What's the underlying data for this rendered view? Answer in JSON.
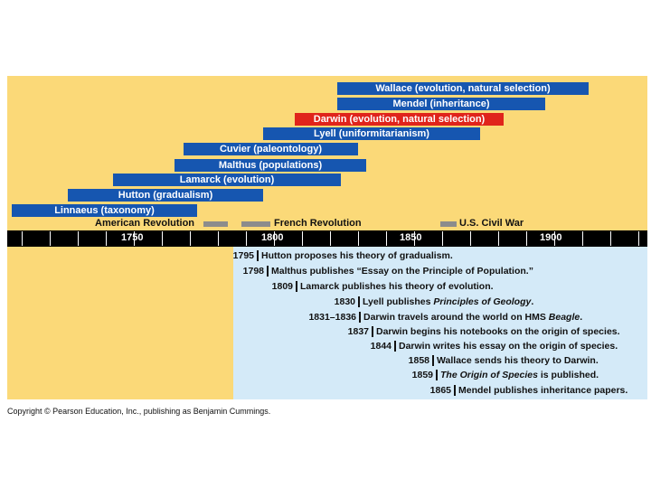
{
  "scientists": [
    {
      "label": "Wallace (evolution, natural selection)",
      "highlight": false
    },
    {
      "label": "Mendel (inheritance)",
      "highlight": false
    },
    {
      "label": "Darwin (evolution, natural selection)",
      "highlight": true
    },
    {
      "label": "Lyell (uniformitarianism)",
      "highlight": false
    },
    {
      "label": "Cuvier (paleontology)",
      "highlight": false
    },
    {
      "label": "Malthus (populations)",
      "highlight": false
    },
    {
      "label": "Lamarck (evolution)",
      "highlight": false
    },
    {
      "label": "Hutton (gradualism)",
      "highlight": false
    },
    {
      "label": "Linnaeus (taxonomy)",
      "highlight": false
    }
  ],
  "historic_events": [
    {
      "label": "American Revolution"
    },
    {
      "label": "French Revolution"
    },
    {
      "label": "U.S. Civil War"
    }
  ],
  "axis_years": [
    "1750",
    "1800",
    "1850",
    "1900"
  ],
  "events": [
    {
      "year": "1795",
      "text": "Hutton proposes his theory of gradualism."
    },
    {
      "year": "1798",
      "text": "Malthus publishes “Essay on the Principle of Population.”"
    },
    {
      "year": "1809",
      "text": "Lamarck publishes his theory of evolution."
    },
    {
      "year": "1830",
      "text_before": "Lyell publishes ",
      "italic": "Principles of Geology",
      "text_after": "."
    },
    {
      "year": "1831–1836",
      "text_before": "Darwin travels around the world on HMS ",
      "italic": "Beagle",
      "text_after": "."
    },
    {
      "year": "1837",
      "text": "Darwin begins his notebooks on the origin of species."
    },
    {
      "year": "1844",
      "text": "Darwin writes his essay on the origin of species."
    },
    {
      "year": "1858",
      "text": "Wallace sends his theory to Darwin."
    },
    {
      "year": "1859",
      "text_before": "",
      "italic": "The Origin of Species",
      "text_after": " is published."
    },
    {
      "year": "1865",
      "text": "Mendel publishes inheritance papers."
    }
  ],
  "copyright": "Copyright © Pearson Education, Inc., publishing as Benjamin Cummings.",
  "colors": {
    "background": "#fbd978",
    "bar": "#1656b0",
    "highlight": "#e0241b",
    "panel": "#d4eaf8"
  }
}
